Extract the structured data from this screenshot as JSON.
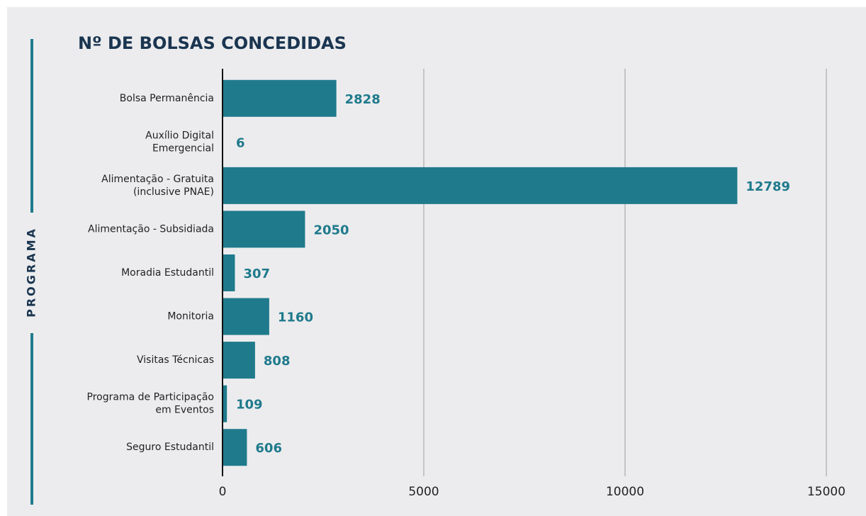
{
  "chart_data": {
    "type": "barh",
    "title": "Nº DE BOLSAS CONCEDIDAS",
    "ylabel": "PROGRAMA",
    "categories": [
      "Bolsa Permanência",
      "Auxílio Digital\nEmergencial",
      "Alimentação - Gratuita\n(inclusive PNAE)",
      "Alimentação - Subsidiada",
      "Moradia Estudantil",
      "Monitoria",
      "Visitas Técnicas",
      "Programa de Participação\nem Eventos",
      "Seguro Estudantil"
    ],
    "values": [
      2828,
      6,
      12789,
      2050,
      307,
      1160,
      808,
      109,
      606
    ],
    "color": "#1f7a8c",
    "xlim": [
      0,
      15000
    ],
    "xticks": [
      0,
      5000,
      10000,
      15000
    ],
    "grid": true
  }
}
